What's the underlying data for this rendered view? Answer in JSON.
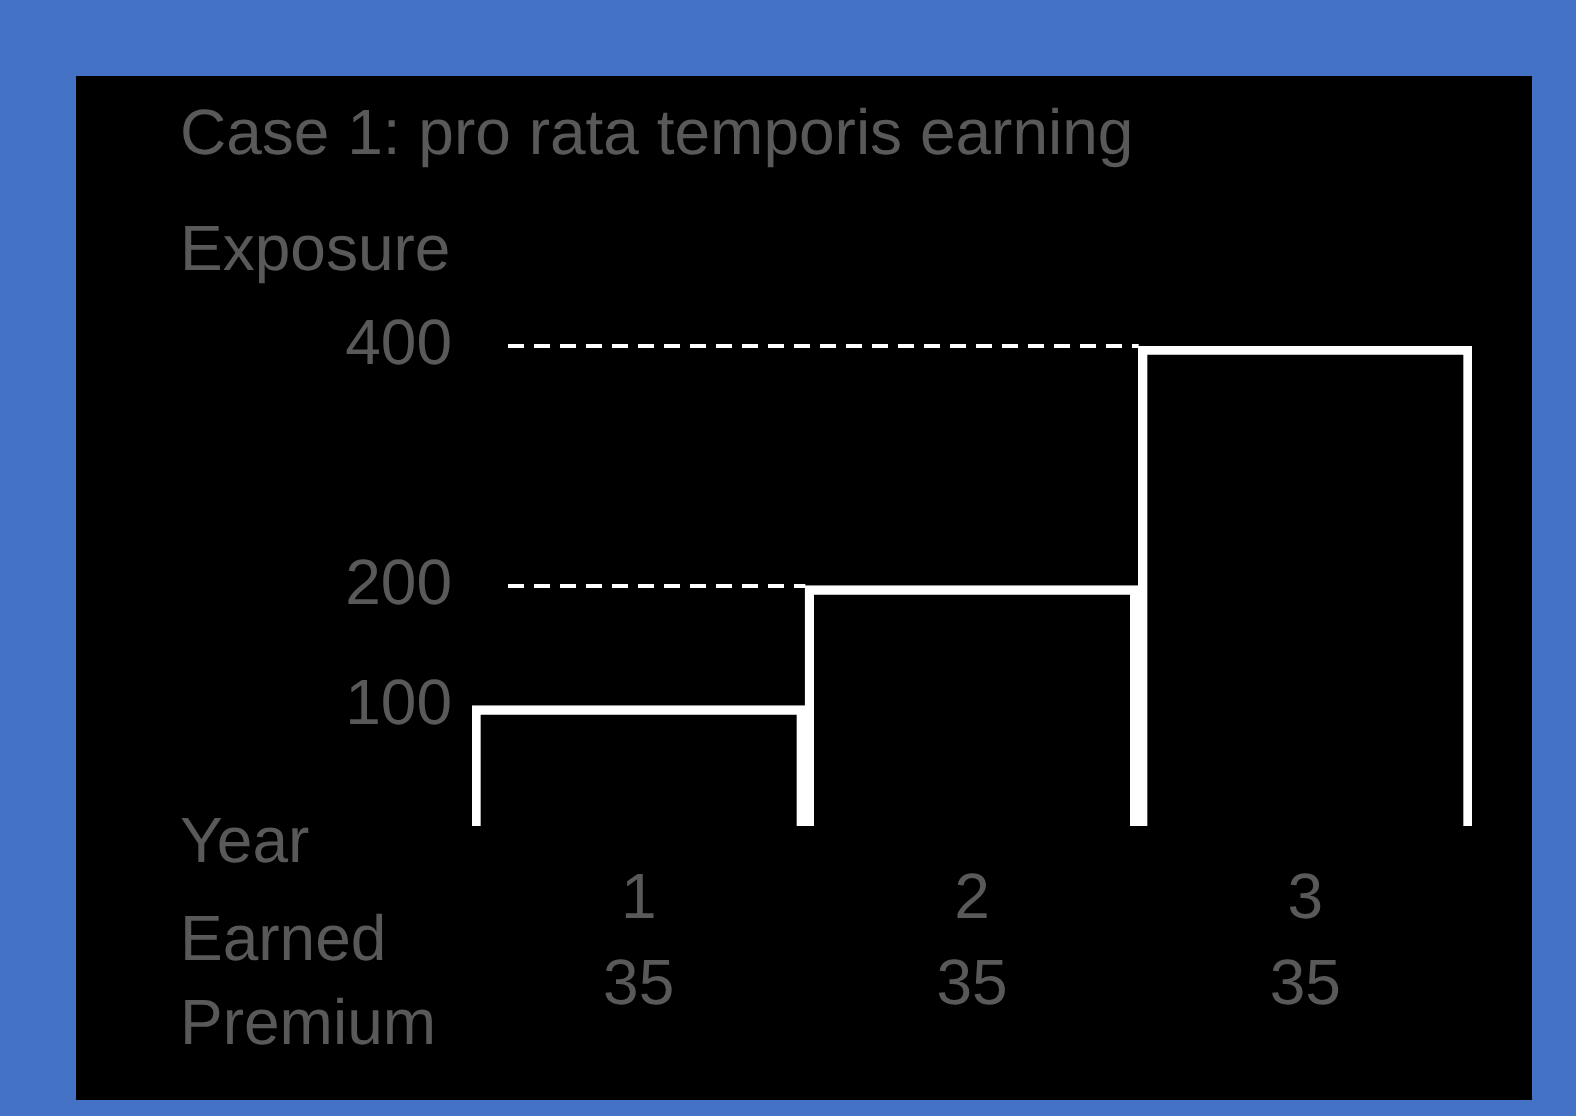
{
  "chart_data": {
    "type": "bar",
    "title": "Case 1: pro rata temporis earning",
    "ylabel": "Exposure",
    "xlabel": "Year",
    "categories": [
      "1",
      "2",
      "3"
    ],
    "values": [
      100,
      200,
      400
    ],
    "color": "#ffffff",
    "ylim": [
      0,
      400
    ],
    "yticks": [
      100,
      200,
      400
    ],
    "ref_lines": [
      {
        "axis": "y",
        "value": 200,
        "color": "#ffffff",
        "line_style": "dashed"
      },
      {
        "axis": "y",
        "value": 400,
        "color": "#ffffff",
        "line_style": "dashed"
      }
    ],
    "annotations": [
      "Earned Premium",
      "35",
      "35",
      "35"
    ]
  }
}
